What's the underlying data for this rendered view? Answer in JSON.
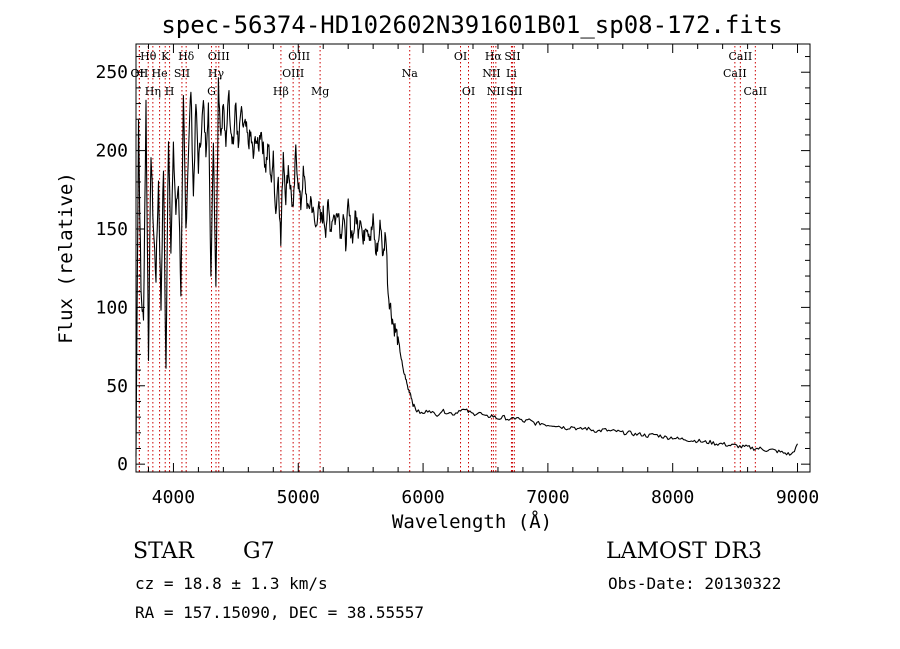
{
  "chart_data": {
    "type": "line",
    "title": "spec-56374-HD102602N391601B01_sp08-172.fits",
    "xlabel": "Wavelength (Å)",
    "ylabel": "Flux (relative)",
    "xlim": [
      3700,
      9100
    ],
    "ylim": [
      -5,
      268
    ],
    "xticks": [
      4000,
      5000,
      6000,
      7000,
      8000,
      9000
    ],
    "yticks": [
      0,
      50,
      100,
      150,
      200,
      250
    ],
    "series": [
      {
        "name": "spectrum",
        "x": [
          3700,
          3720,
          3740,
          3760,
          3780,
          3800,
          3820,
          3840,
          3860,
          3880,
          3900,
          3920,
          3940,
          3960,
          3980,
          4000,
          4020,
          4040,
          4060,
          4080,
          4100,
          4120,
          4140,
          4160,
          4180,
          4200,
          4220,
          4240,
          4260,
          4280,
          4300,
          4320,
          4340,
          4360,
          4380,
          4400,
          4420,
          4440,
          4460,
          4480,
          4500,
          4520,
          4540,
          4560,
          4580,
          4600,
          4620,
          4640,
          4660,
          4680,
          4700,
          4720,
          4740,
          4760,
          4780,
          4800,
          4820,
          4840,
          4860,
          4880,
          4900,
          4920,
          4940,
          4960,
          4980,
          5000,
          5020,
          5040,
          5060,
          5080,
          5100,
          5120,
          5140,
          5160,
          5180,
          5200,
          5220,
          5240,
          5260,
          5280,
          5300,
          5320,
          5340,
          5360,
          5380,
          5400,
          5420,
          5440,
          5460,
          5480,
          5500,
          5520,
          5540,
          5560,
          5580,
          5600,
          5620,
          5640,
          5660,
          5680,
          5700,
          5720,
          5740,
          5760,
          5780,
          5800,
          5820,
          5840,
          5860,
          5880,
          5900,
          5920,
          5950,
          6000,
          6050,
          6100,
          6150,
          6200,
          6250,
          6300,
          6350,
          6400,
          6450,
          6500,
          6550,
          6600,
          6650,
          6700,
          6750,
          6800,
          6850,
          6900,
          6950,
          7000,
          7050,
          7100,
          7150,
          7200,
          7250,
          7300,
          7350,
          7400,
          7450,
          7500,
          7550,
          7600,
          7650,
          7700,
          7750,
          7800,
          7850,
          7900,
          7950,
          8000,
          8050,
          8100,
          8150,
          8200,
          8250,
          8300,
          8350,
          8400,
          8450,
          8500,
          8550,
          8600,
          8650,
          8700,
          8750,
          8800,
          8850,
          8900,
          8950,
          9000
        ],
        "y": [
          5,
          220,
          110,
          90,
          230,
          70,
          200,
          150,
          120,
          180,
          100,
          190,
          60,
          210,
          140,
          200,
          160,
          180,
          110,
          230,
          150,
          200,
          240,
          170,
          230,
          190,
          210,
          230,
          200,
          230,
          120,
          210,
          110,
          245,
          210,
          230,
          200,
          240,
          215,
          205,
          230,
          200,
          225,
          215,
          215,
          205,
          210,
          195,
          210,
          200,
          215,
          200,
          190,
          205,
          180,
          195,
          160,
          185,
          140,
          200,
          170,
          190,
          175,
          160,
          200,
          180,
          165,
          185,
          175,
          160,
          170,
          160,
          150,
          165,
          155,
          160,
          150,
          165,
          150,
          160,
          155,
          165,
          145,
          160,
          140,
          165,
          150,
          145,
          160,
          150,
          160,
          140,
          155,
          150,
          145,
          155,
          135,
          140,
          155,
          130,
          150,
          110,
          100,
          90,
          85,
          80,
          70,
          60,
          55,
          48,
          45,
          38,
          34,
          32,
          35,
          31,
          34,
          33,
          32,
          35,
          34,
          32,
          33,
          30,
          31,
          29,
          30,
          28,
          30,
          27,
          28,
          26,
          26,
          25,
          25,
          24,
          23,
          24,
          22,
          23,
          22,
          21,
          22,
          21,
          21,
          20,
          20,
          19,
          19,
          18,
          19,
          18,
          17,
          17,
          16,
          16,
          15,
          15,
          14,
          14,
          13,
          13,
          12,
          12,
          11,
          11,
          10,
          10,
          9,
          9,
          8,
          7,
          6,
          12
        ]
      }
    ],
    "lines": [
      {
        "name": "Hθ",
        "x": 3798,
        "row": 0
      },
      {
        "name": "OII",
        "x": 3727,
        "row": 1
      },
      {
        "name": "Hη",
        "x": 3835,
        "row": 2
      },
      {
        "name": "OII",
        "x": 3727,
        "row": 3
      },
      {
        "name": "He",
        "x": 3889,
        "row": 1
      },
      {
        "name": "K",
        "x": 3934,
        "row": 0
      },
      {
        "name": "H",
        "x": 3969,
        "row": 2
      },
      {
        "name": "SII",
        "x": 4068,
        "row": 1
      },
      {
        "name": "Hδ",
        "x": 4102,
        "row": 0
      },
      {
        "name": "G",
        "x": 4305,
        "row": 2
      },
      {
        "name": "Hγ",
        "x": 4341,
        "row": 1
      },
      {
        "name": "OIII",
        "x": 4363,
        "row": 0
      },
      {
        "name": "Hβ",
        "x": 4861,
        "row": 2
      },
      {
        "name": "OIII",
        "x": 4959,
        "row": 1
      },
      {
        "name": "OIII",
        "x": 5007,
        "row": 0
      },
      {
        "name": "Mg",
        "x": 5175,
        "row": 2
      },
      {
        "name": "Na",
        "x": 5893,
        "row": 1
      },
      {
        "name": "OI",
        "x": 6300,
        "row": 0
      },
      {
        "name": "OI",
        "x": 6364,
        "row": 2
      },
      {
        "name": "NII",
        "x": 6548,
        "row": 1
      },
      {
        "name": "Hα",
        "x": 6563,
        "row": 0
      },
      {
        "name": "NII",
        "x": 6583,
        "row": 2
      },
      {
        "name": "Li",
        "x": 6708,
        "row": 1
      },
      {
        "name": "SII",
        "x": 6716,
        "row": 0
      },
      {
        "name": "SII",
        "x": 6731,
        "row": 2
      },
      {
        "name": "CaII",
        "x": 8498,
        "row": 1
      },
      {
        "name": "CaII",
        "x": 8542,
        "row": 0
      },
      {
        "name": "CaII",
        "x": 8662,
        "row": 2
      }
    ]
  },
  "info": {
    "object_class": "STAR",
    "subclass": "G7",
    "survey": "LAMOST DR3",
    "cz": "cz = 18.8 ± 1.3 km/s",
    "obs_date": "Obs-Date: 20130322",
    "radec": "RA = 157.15090, DEC =  38.55557"
  },
  "colors": {
    "line_marker": "#cc0000",
    "spectrum": "#000000",
    "axes": "#000000",
    "background": "#ffffff"
  }
}
